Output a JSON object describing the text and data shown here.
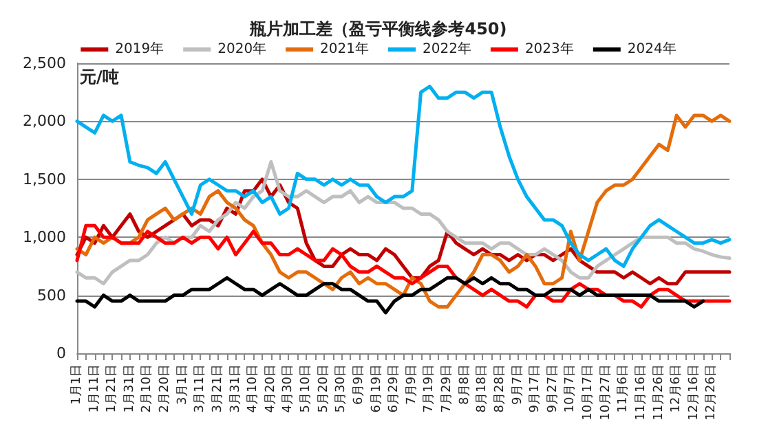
{
  "chart_data": {
    "type": "line",
    "title": "瓶片加工差（盈亏平衡线参考450)",
    "ylabel": "元/吨",
    "categories": [
      "1月1日",
      null,
      "1月11日",
      null,
      "1月21日",
      null,
      "1月31日",
      null,
      "2月10日",
      null,
      "2月20日",
      null,
      "3月1日",
      null,
      "3月11日",
      null,
      "3月21日",
      null,
      "3月31日",
      null,
      "4月10日",
      null,
      "4月20日",
      null,
      "4月30日",
      null,
      "5月10日",
      null,
      "5月20日",
      null,
      "5月30日",
      null,
      "6月9日",
      null,
      "6月19日",
      null,
      "6月29日",
      null,
      "7月9日",
      null,
      "7月19日",
      null,
      "7月29日",
      null,
      "8月8日",
      null,
      "8月18日",
      null,
      "8月28日",
      null,
      "9月7日",
      null,
      "9月17日",
      null,
      "9月27日",
      null,
      "10月7日",
      null,
      "10月17日",
      null,
      "10月27日",
      null,
      "11月6日",
      null,
      "11月16日",
      null,
      "11月26日",
      null,
      "12月6日",
      null,
      "12月16日",
      null,
      "12月26日",
      null,
      null
    ],
    "series": [
      {
        "name": "2019年",
        "color": "#c00000",
        "values": [
          850,
          1000,
          950,
          1100,
          1000,
          1100,
          1200,
          1050,
          1000,
          1050,
          1100,
          1150,
          1200,
          1100,
          1150,
          1150,
          1100,
          1250,
          1200,
          1400,
          1400,
          1500,
          1350,
          1450,
          1300,
          1250,
          950,
          800,
          750,
          750,
          850,
          900,
          850,
          850,
          800,
          900,
          850,
          750,
          650,
          650,
          750,
          800,
          1050,
          950,
          900,
          850,
          900,
          850,
          850,
          800,
          850,
          800,
          850,
          850,
          800,
          850,
          900,
          800,
          750,
          700,
          700,
          700,
          650,
          700,
          650,
          600,
          650,
          600,
          600,
          700,
          700,
          700,
          700,
          700,
          700
        ]
      },
      {
        "name": "2020年",
        "color": "#bfbfbf",
        "values": [
          700,
          650,
          650,
          600,
          700,
          750,
          800,
          800,
          850,
          950,
          1000,
          950,
          1000,
          1000,
          1100,
          1050,
          1150,
          1200,
          1300,
          1250,
          1350,
          1400,
          1650,
          1400,
          1350,
          1350,
          1400,
          1350,
          1300,
          1350,
          1350,
          1400,
          1300,
          1350,
          1300,
          1300,
          1300,
          1250,
          1250,
          1200,
          1200,
          1150,
          1050,
          1000,
          950,
          950,
          950,
          900,
          950,
          950,
          900,
          850,
          850,
          900,
          850,
          800,
          700,
          650,
          650,
          750,
          800,
          850,
          900,
          950,
          1000,
          1000,
          1000,
          1000,
          950,
          950,
          900,
          880,
          850,
          830,
          820
        ]
      },
      {
        "name": "2021年",
        "color": "#e46c0a",
        "values": [
          900,
          850,
          1000,
          950,
          1000,
          950,
          950,
          1000,
          1150,
          1200,
          1250,
          1150,
          1200,
          1250,
          1200,
          1350,
          1400,
          1300,
          1250,
          1150,
          1100,
          950,
          850,
          700,
          650,
          700,
          700,
          650,
          600,
          550,
          650,
          700,
          600,
          650,
          600,
          600,
          550,
          500,
          650,
          600,
          450,
          400,
          400,
          500,
          600,
          700,
          850,
          850,
          800,
          700,
          750,
          850,
          750,
          600,
          600,
          650,
          1050,
          800,
          1050,
          1300,
          1400,
          1450,
          1450,
          1500,
          1600,
          1700,
          1800,
          1750,
          2050,
          1950,
          2050,
          2050,
          2000,
          2050,
          2000
        ]
      },
      {
        "name": "2022年",
        "color": "#00b0f0",
        "values": [
          2000,
          1950,
          1900,
          2050,
          2000,
          2050,
          1650,
          1620,
          1600,
          1550,
          1650,
          1500,
          1350,
          1200,
          1450,
          1500,
          1450,
          1400,
          1400,
          1350,
          1400,
          1300,
          1350,
          1200,
          1250,
          1550,
          1500,
          1500,
          1450,
          1500,
          1450,
          1500,
          1450,
          1450,
          1350,
          1300,
          1350,
          1350,
          1400,
          2250,
          2300,
          2200,
          2200,
          2250,
          2250,
          2200,
          2250,
          2250,
          1950,
          1700,
          1500,
          1350,
          1250,
          1150,
          1150,
          1100,
          950,
          850,
          800,
          850,
          900,
          800,
          750,
          900,
          1000,
          1100,
          1150,
          1100,
          1050,
          1000,
          950,
          950,
          980,
          950,
          980
        ]
      },
      {
        "name": "2023年",
        "color": "#ff0000",
        "values": [
          800,
          1100,
          1100,
          1000,
          1000,
          950,
          950,
          950,
          1050,
          1000,
          950,
          950,
          1000,
          950,
          1000,
          1000,
          900,
          1000,
          850,
          950,
          1050,
          950,
          950,
          850,
          850,
          900,
          850,
          800,
          800,
          900,
          850,
          750,
          700,
          700,
          750,
          700,
          650,
          650,
          600,
          650,
          700,
          750,
          750,
          650,
          600,
          550,
          500,
          550,
          500,
          450,
          450,
          400,
          500,
          500,
          450,
          450,
          550,
          600,
          550,
          550,
          500,
          500,
          450,
          450,
          400,
          500,
          550,
          550,
          500,
          450,
          450,
          450,
          450,
          450,
          450
        ]
      },
      {
        "name": "2024年",
        "color": "#000000",
        "values": [
          450,
          450,
          400,
          500,
          450,
          450,
          500,
          450,
          450,
          450,
          450,
          500,
          500,
          550,
          550,
          550,
          600,
          650,
          600,
          550,
          550,
          500,
          550,
          600,
          550,
          500,
          500,
          550,
          600,
          600,
          550,
          550,
          500,
          450,
          450,
          350,
          450,
          500,
          500,
          550,
          550,
          600,
          650,
          650,
          600,
          650,
          600,
          650,
          600,
          600,
          550,
          550,
          500,
          500,
          550,
          550,
          550,
          500,
          550,
          500,
          500,
          500,
          500,
          500,
          500,
          500,
          450,
          450,
          450,
          450,
          400,
          450,
          null,
          null,
          null
        ]
      }
    ],
    "ylim": [
      0,
      2500
    ],
    "yticks": [
      0,
      500,
      {
        "value": 1000,
        "label": "1,000"
      },
      {
        "value": 1500,
        "label": "1,500"
      },
      {
        "value": 2000,
        "label": "2,000"
      },
      {
        "value": 2500,
        "label": "2,500"
      }
    ],
    "grid": "y",
    "legend": "top",
    "marker": "none",
    "line_style": "solid"
  }
}
